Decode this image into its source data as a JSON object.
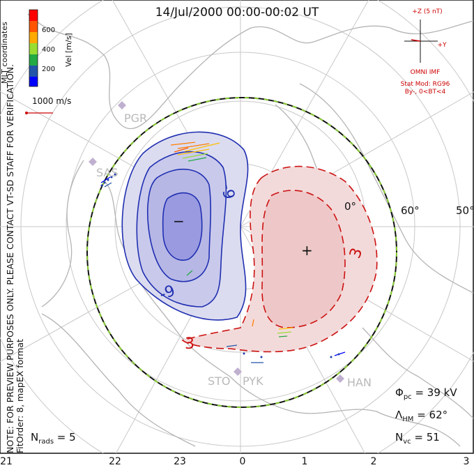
{
  "title": "14/Jul/2000 00:00-00:02 UT",
  "note_lines": [
    "NOTE: FOR PREVIEW PURPOSES ONLY. PLEASE CONTACT VT-SD STAFF FOR VERIFICATION.",
    "FitOrder: 8, mapEX format"
  ],
  "coord_label": "MLT coordinates",
  "vel_scale": {
    "label": "Vel [m/s]",
    "ticks": [
      "600",
      "400",
      "200"
    ],
    "colors": [
      "#ff0000",
      "#ff7f00",
      "#ffbf00",
      "#99dd33",
      "#22aa44",
      "#2255aa",
      "#0000ff"
    ]
  },
  "ref_vector": "1000 m/s",
  "imf": {
    "axis_z": "+Z (5 nT)",
    "axis_y": "+Y",
    "source": "OMNI IMF",
    "model": "Stat Mod: RG96",
    "condition": "By-, 0<BT<4"
  },
  "stats": {
    "phi_pc": "Φ",
    "phi_sub": "pc",
    "phi_val": " = 39 kV",
    "lambda": "Λ",
    "lambda_sub": "HM",
    "lambda_val": " = 62°",
    "nvc": "N",
    "nvc_sub": "vc",
    "nvc_val": " = 51",
    "nrads": "N",
    "nrads_sub": "rads",
    "nrads_val": " = 5"
  },
  "mlt_ticks": [
    "21",
    "22",
    "23",
    "0",
    "1",
    "2",
    "3"
  ],
  "lat_labels": [
    "60°",
    "50°",
    "0°"
  ],
  "sites": [
    "PGR",
    "SAS",
    "STO",
    "PYK",
    "HAN"
  ],
  "contour_labels": [
    "-9",
    "-9",
    "3",
    "3"
  ],
  "cell_markers": [
    "−",
    "+"
  ]
}
